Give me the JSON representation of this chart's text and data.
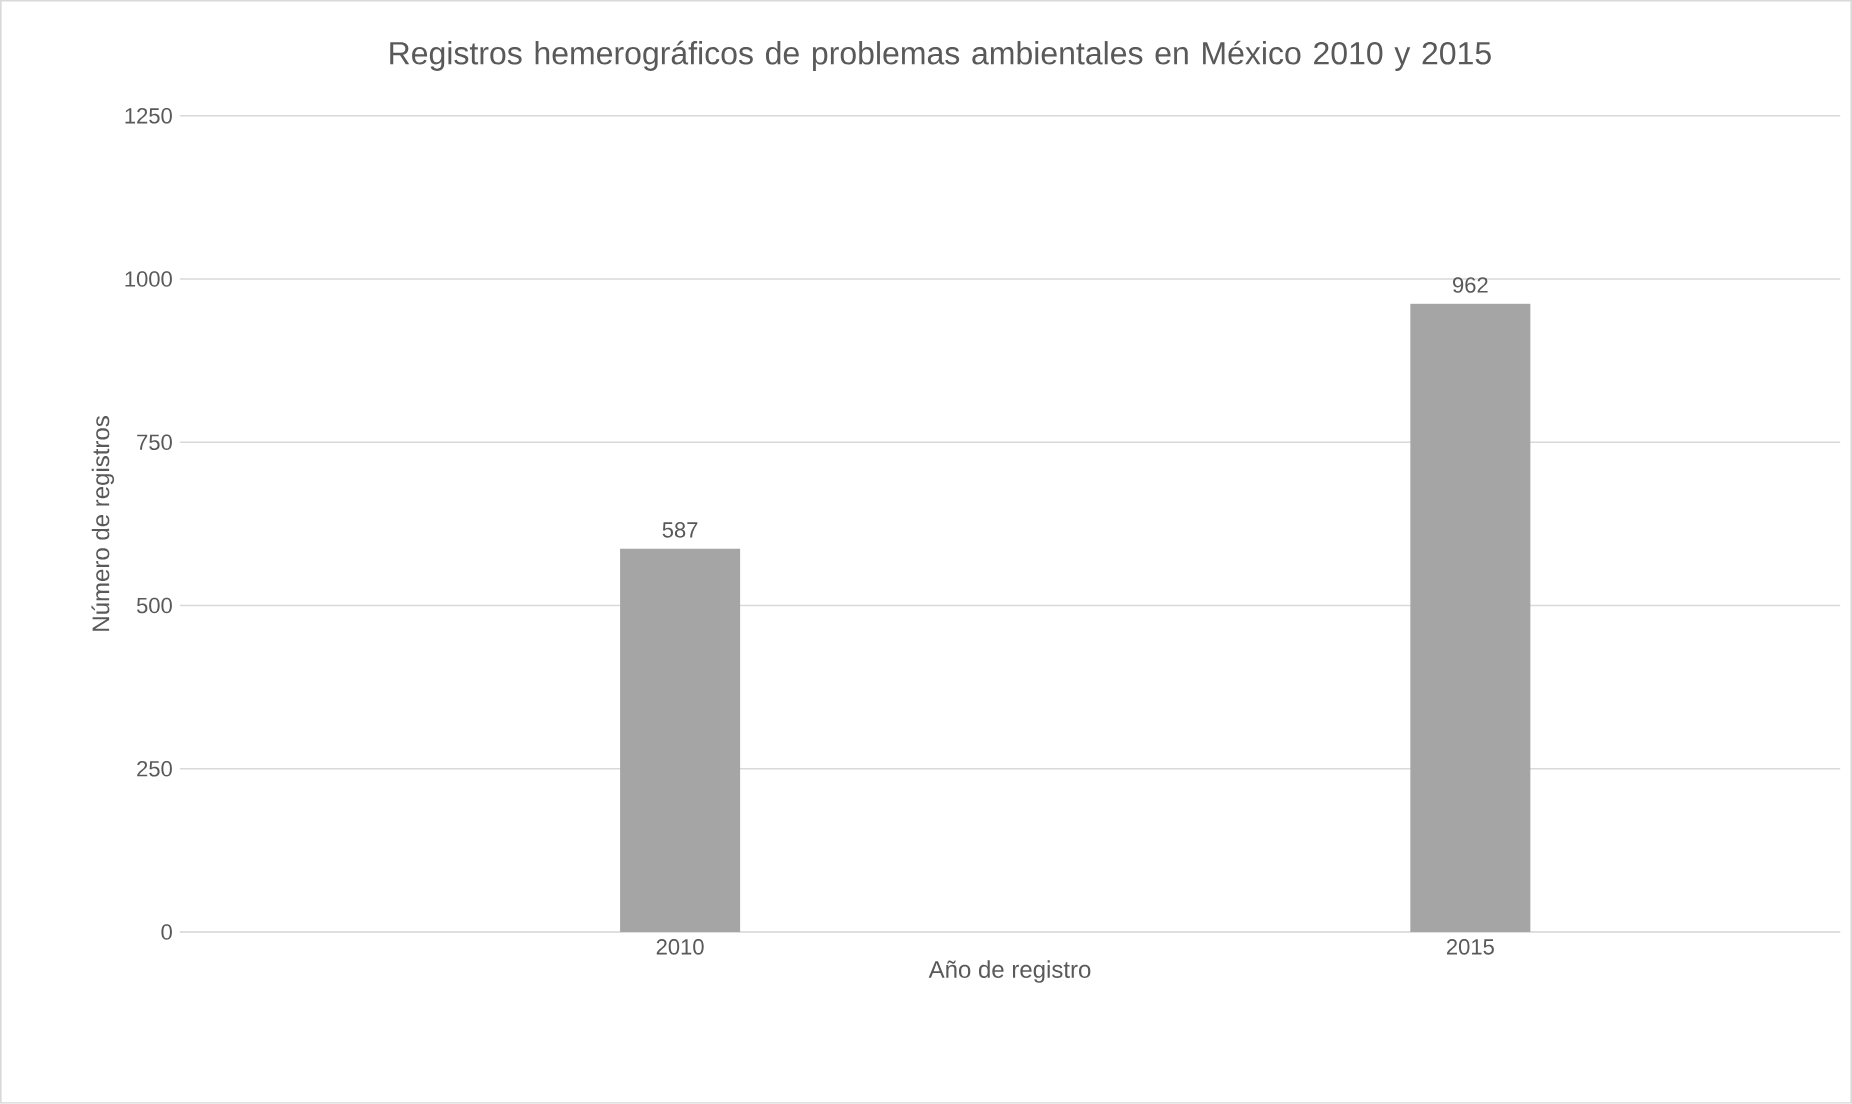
{
  "chart_data": {
    "type": "bar",
    "title": "Registros hemerográficos de problemas ambientales en México 2010 y 2015",
    "xlabel": "Año de registro",
    "ylabel": "Número de registros",
    "categories": [
      "2010",
      "2015"
    ],
    "values": [
      587,
      962
    ],
    "color": "#a5a5a5",
    "ylim": [
      0,
      1250
    ],
    "yticks": [
      0,
      250,
      500,
      750,
      1000,
      1250
    ],
    "grid": "y",
    "data_labels": true
  }
}
